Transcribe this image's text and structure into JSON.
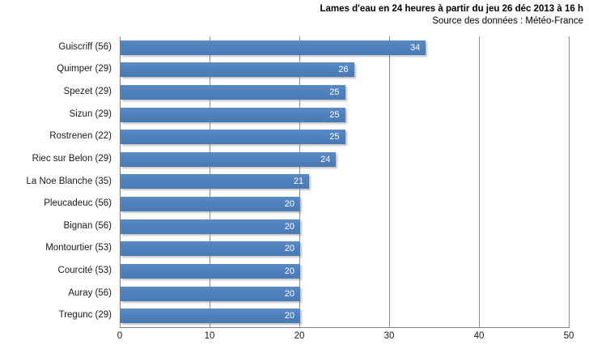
{
  "chart_data": {
    "type": "bar",
    "orientation": "horizontal",
    "title": "Lames d'eau en 24 heures à partir du jeu 26 déc 2013 à 16 h",
    "subtitle": "Source des données : Météo-France",
    "categories": [
      "Guiscriff (56)",
      "Quimper (29)",
      "Spezet (29)",
      "Sizun (29)",
      "Rostrenen (22)",
      "Riec sur Belon (29)",
      "La Noe Blanche (35)",
      "Pleucadeuc (56)",
      "Bignan (56)",
      "Montourtier (53)",
      "Courcité (53)",
      "Auray (56)",
      "Tregunc (29)"
    ],
    "values": [
      34,
      26,
      25,
      25,
      25,
      24,
      21,
      20,
      20,
      20,
      20,
      20,
      20
    ],
    "xlim": [
      0,
      50
    ],
    "xticks": [
      0,
      10,
      20,
      30,
      40,
      50
    ],
    "grid": "vertical",
    "legend": "none",
    "data_labels": "inside-end",
    "bar_color": "#4F81BD",
    "data_label_color": "#FFFFFF",
    "axis_color": "#808080",
    "gridline_color": "#8C8C8C"
  }
}
